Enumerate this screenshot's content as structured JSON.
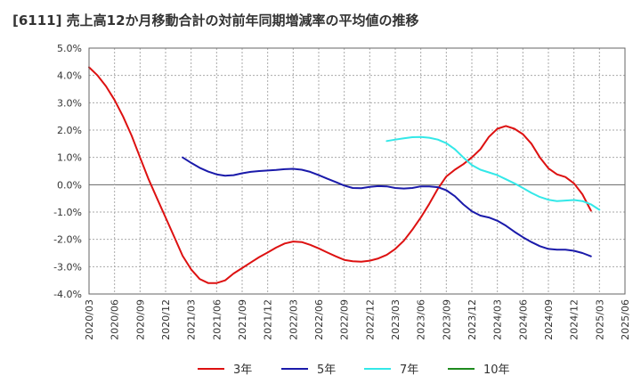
{
  "chart_data": {
    "type": "line",
    "title": "[6111]  売上高12か月移動合計の対前年同期増減率の平均値の推移",
    "xlabel": "",
    "ylabel": "",
    "ylim": [
      -4.0,
      5.0
    ],
    "yticks": [
      "5.0%",
      "4.0%",
      "3.0%",
      "2.0%",
      "1.0%",
      "0.0%",
      "-1.0%",
      "-2.0%",
      "-3.0%",
      "-4.0%"
    ],
    "ytick_values": [
      5,
      4,
      3,
      2,
      1,
      0,
      -1,
      -2,
      -3,
      -4
    ],
    "xticks": [
      "2020/03",
      "2020/06",
      "2020/09",
      "2020/12",
      "2021/03",
      "2021/06",
      "2021/09",
      "2021/12",
      "2022/03",
      "2022/06",
      "2022/09",
      "2022/12",
      "2023/03",
      "2023/06",
      "2023/09",
      "2023/12",
      "2024/03",
      "2024/06",
      "2024/09",
      "2024/12",
      "2025/03",
      "2025/06"
    ],
    "grid": true,
    "legend_position": "bottom",
    "series": [
      {
        "name": "3年",
        "color": "#dd1111",
        "x": [
          "2020/03",
          "2020/04",
          "2020/05",
          "2020/06",
          "2020/07",
          "2020/08",
          "2020/09",
          "2020/10",
          "2020/11",
          "2020/12",
          "2021/01",
          "2021/02",
          "2021/03",
          "2021/04",
          "2021/05",
          "2021/06",
          "2021/07",
          "2021/08",
          "2021/09",
          "2021/10",
          "2021/11",
          "2021/12",
          "2022/01",
          "2022/02",
          "2022/03",
          "2022/04",
          "2022/05",
          "2022/06",
          "2022/07",
          "2022/08",
          "2022/09",
          "2022/10",
          "2022/11",
          "2022/12",
          "2023/01",
          "2023/02",
          "2023/03",
          "2023/04",
          "2023/05",
          "2023/06",
          "2023/07",
          "2023/08",
          "2023/09",
          "2023/10",
          "2023/11",
          "2023/12",
          "2024/01",
          "2024/02",
          "2024/03",
          "2024/04",
          "2024/05",
          "2024/06",
          "2024/07",
          "2024/08",
          "2024/09",
          "2024/10",
          "2024/11",
          "2024/12",
          "2025/01",
          "2025/02",
          "2025/03"
        ],
        "values": [
          4.3,
          4.0,
          3.6,
          3.1,
          2.5,
          1.8,
          1.0,
          0.2,
          -0.5,
          -1.2,
          -1.9,
          -2.6,
          -3.1,
          -3.45,
          -3.6,
          -3.6,
          -3.5,
          -3.25,
          -3.05,
          -2.85,
          -2.65,
          -2.48,
          -2.3,
          -2.15,
          -2.08,
          -2.1,
          -2.2,
          -2.33,
          -2.48,
          -2.62,
          -2.75,
          -2.8,
          -2.82,
          -2.78,
          -2.7,
          -2.57,
          -2.35,
          -2.05,
          -1.65,
          -1.2,
          -0.7,
          -0.15,
          0.3,
          0.55,
          0.75,
          1.0,
          1.3,
          1.75,
          2.05,
          2.15,
          2.05,
          1.85,
          1.5,
          1.0,
          0.6,
          0.38,
          0.28,
          0.05,
          -0.35,
          -0.95,
          null
        ]
      },
      {
        "name": "5年",
        "color": "#1a1aaa",
        "x": [
          "2021/02",
          "2021/03",
          "2021/04",
          "2021/05",
          "2021/06",
          "2021/07",
          "2021/08",
          "2021/09",
          "2021/10",
          "2021/11",
          "2021/12",
          "2022/01",
          "2022/02",
          "2022/03",
          "2022/04",
          "2022/05",
          "2022/06",
          "2022/07",
          "2022/08",
          "2022/09",
          "2022/10",
          "2022/11",
          "2022/12",
          "2023/01",
          "2023/02",
          "2023/03",
          "2023/04",
          "2023/05",
          "2023/06",
          "2023/07",
          "2023/08",
          "2023/09",
          "2023/10",
          "2023/11",
          "2023/12",
          "2024/01",
          "2024/02",
          "2024/03",
          "2024/04",
          "2024/05",
          "2024/06",
          "2024/07",
          "2024/08",
          "2024/09",
          "2024/10",
          "2024/11",
          "2024/12",
          "2025/01",
          "2025/02",
          "2025/03"
        ],
        "values": [
          1.0,
          0.8,
          0.62,
          0.48,
          0.38,
          0.33,
          0.35,
          0.42,
          0.47,
          0.5,
          0.52,
          0.54,
          0.57,
          0.58,
          0.55,
          0.47,
          0.35,
          0.22,
          0.1,
          -0.03,
          -0.12,
          -0.13,
          -0.08,
          -0.05,
          -0.06,
          -0.12,
          -0.14,
          -0.12,
          -0.06,
          -0.06,
          -0.09,
          -0.2,
          -0.42,
          -0.72,
          -0.97,
          -1.13,
          -1.2,
          -1.32,
          -1.5,
          -1.72,
          -1.92,
          -2.1,
          -2.25,
          -2.35,
          -2.38,
          -2.38,
          -2.42,
          -2.5,
          -2.62,
          null
        ]
      },
      {
        "name": "7年",
        "color": "#33e8e8",
        "x": [
          "2023/02",
          "2023/03",
          "2023/04",
          "2023/05",
          "2023/06",
          "2023/07",
          "2023/08",
          "2023/09",
          "2023/10",
          "2023/11",
          "2023/12",
          "2024/01",
          "2024/02",
          "2024/03",
          "2024/04",
          "2024/05",
          "2024/06",
          "2024/07",
          "2024/08",
          "2024/09",
          "2024/10",
          "2024/11",
          "2024/12",
          "2025/01",
          "2025/02",
          "2025/03"
        ],
        "values": [
          1.6,
          1.65,
          1.7,
          1.74,
          1.75,
          1.72,
          1.65,
          1.52,
          1.3,
          1.0,
          0.72,
          0.55,
          0.45,
          0.35,
          0.2,
          0.05,
          -0.12,
          -0.3,
          -0.45,
          -0.55,
          -0.6,
          -0.58,
          -0.56,
          -0.6,
          -0.72,
          -0.92
        ]
      },
      {
        "name": "10年",
        "color": "#1e8a1e",
        "x": [],
        "values": []
      }
    ]
  }
}
